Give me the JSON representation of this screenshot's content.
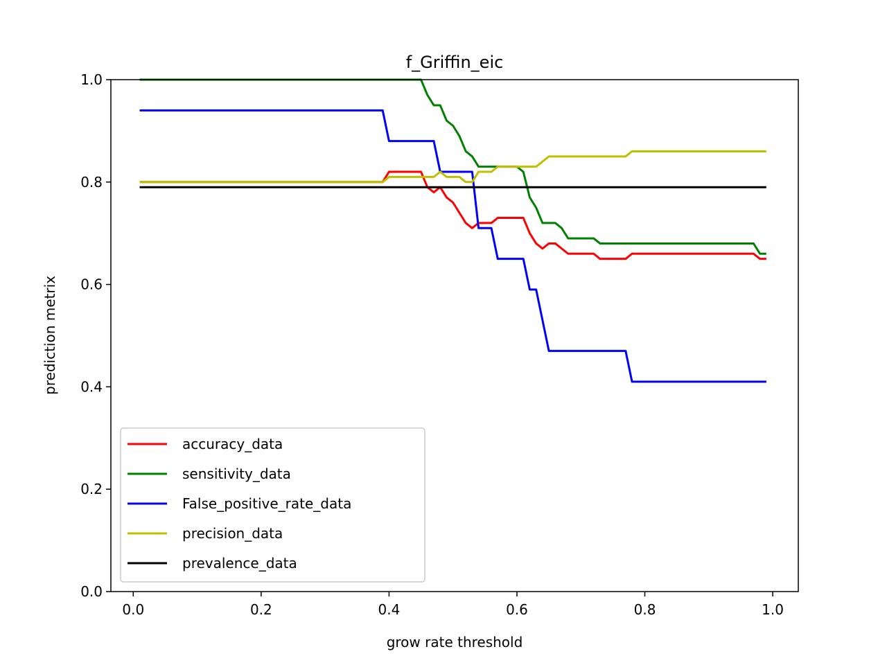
{
  "chart_data": {
    "type": "line",
    "title": "f_Griffin_eic",
    "xlabel": "grow rate threshold",
    "ylabel": "prediction metrix",
    "xlim": [
      -0.035,
      1.04
    ],
    "ylim": [
      0.0,
      1.0
    ],
    "xticks": [
      "0.0",
      "0.2",
      "0.4",
      "0.6",
      "0.8",
      "1.0"
    ],
    "yticks": [
      "0.0",
      "0.2",
      "0.4",
      "0.6",
      "0.8",
      "1.0"
    ],
    "grid": false,
    "legend_position": "lower-left",
    "series": [
      {
        "name": "accuracy_data",
        "color": "#ff0000",
        "points": [
          [
            0.01,
            0.8
          ],
          [
            0.39,
            0.8
          ],
          [
            0.4,
            0.82
          ],
          [
            0.45,
            0.82
          ],
          [
            0.46,
            0.79
          ],
          [
            0.47,
            0.78
          ],
          [
            0.48,
            0.79
          ],
          [
            0.49,
            0.77
          ],
          [
            0.5,
            0.76
          ],
          [
            0.51,
            0.74
          ],
          [
            0.52,
            0.72
          ],
          [
            0.53,
            0.71
          ],
          [
            0.54,
            0.72
          ],
          [
            0.56,
            0.72
          ],
          [
            0.57,
            0.73
          ],
          [
            0.61,
            0.73
          ],
          [
            0.62,
            0.7
          ],
          [
            0.63,
            0.68
          ],
          [
            0.64,
            0.67
          ],
          [
            0.65,
            0.68
          ],
          [
            0.66,
            0.68
          ],
          [
            0.67,
            0.67
          ],
          [
            0.68,
            0.66
          ],
          [
            0.72,
            0.66
          ],
          [
            0.73,
            0.65
          ],
          [
            0.77,
            0.65
          ],
          [
            0.78,
            0.66
          ],
          [
            0.97,
            0.66
          ],
          [
            0.98,
            0.65
          ],
          [
            0.99,
            0.65
          ]
        ]
      },
      {
        "name": "sensitivity_data",
        "color": "#008000",
        "points": [
          [
            0.01,
            1.0
          ],
          [
            0.45,
            1.0
          ],
          [
            0.46,
            0.97
          ],
          [
            0.47,
            0.95
          ],
          [
            0.48,
            0.95
          ],
          [
            0.49,
            0.92
          ],
          [
            0.5,
            0.91
          ],
          [
            0.51,
            0.89
          ],
          [
            0.52,
            0.86
          ],
          [
            0.53,
            0.85
          ],
          [
            0.54,
            0.83
          ],
          [
            0.6,
            0.83
          ],
          [
            0.61,
            0.82
          ],
          [
            0.62,
            0.77
          ],
          [
            0.63,
            0.75
          ],
          [
            0.64,
            0.72
          ],
          [
            0.66,
            0.72
          ],
          [
            0.67,
            0.71
          ],
          [
            0.68,
            0.69
          ],
          [
            0.72,
            0.69
          ],
          [
            0.73,
            0.68
          ],
          [
            0.97,
            0.68
          ],
          [
            0.98,
            0.66
          ],
          [
            0.99,
            0.66
          ]
        ]
      },
      {
        "name": "False_positive_rate_data",
        "color": "#0000ff",
        "points": [
          [
            0.01,
            0.94
          ],
          [
            0.39,
            0.94
          ],
          [
            0.4,
            0.88
          ],
          [
            0.47,
            0.88
          ],
          [
            0.48,
            0.82
          ],
          [
            0.53,
            0.82
          ],
          [
            0.54,
            0.71
          ],
          [
            0.56,
            0.71
          ],
          [
            0.57,
            0.65
          ],
          [
            0.61,
            0.65
          ],
          [
            0.62,
            0.59
          ],
          [
            0.63,
            0.59
          ],
          [
            0.65,
            0.47
          ],
          [
            0.77,
            0.47
          ],
          [
            0.78,
            0.41
          ],
          [
            0.99,
            0.41
          ]
        ]
      },
      {
        "name": "precision_data",
        "color": "#bfbf00",
        "points": [
          [
            0.01,
            0.8
          ],
          [
            0.39,
            0.8
          ],
          [
            0.4,
            0.81
          ],
          [
            0.47,
            0.81
          ],
          [
            0.48,
            0.82
          ],
          [
            0.49,
            0.81
          ],
          [
            0.51,
            0.81
          ],
          [
            0.52,
            0.8
          ],
          [
            0.53,
            0.8
          ],
          [
            0.54,
            0.82
          ],
          [
            0.56,
            0.82
          ],
          [
            0.57,
            0.83
          ],
          [
            0.63,
            0.83
          ],
          [
            0.65,
            0.85
          ],
          [
            0.77,
            0.85
          ],
          [
            0.78,
            0.86
          ],
          [
            0.99,
            0.86
          ]
        ]
      },
      {
        "name": "prevalence_data",
        "color": "#000000",
        "points": [
          [
            0.01,
            0.79
          ],
          [
            0.99,
            0.79
          ]
        ]
      }
    ]
  }
}
